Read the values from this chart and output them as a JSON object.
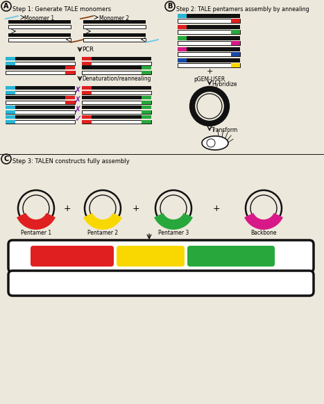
{
  "bg": "#ede8dc",
  "black": "#111111",
  "white": "#ffffff",
  "cyan": "#28b5d5",
  "red": "#e02020",
  "green": "#28a83c",
  "magenta": "#d81888",
  "blue": "#1848a8",
  "yellow": "#f8d800",
  "purple": "#7820a0",
  "brown": "#8B4513",
  "lblue": "#68c8e8",
  "panel_A": "A",
  "panel_B": "B",
  "panel_C": "C",
  "title_A": "Step 1: Generate TALE monomers",
  "title_B": "Step 2: TALE pentamers assembly by annealing",
  "title_C": "Step 3: TALEN constructs fully assembly",
  "mon1": "Monomer 1",
  "mon2": "Monomer 2",
  "pcr": "PCR",
  "denat": "Denaturation/reannealing",
  "pgem": "pGEM-USER",
  "hybrid": "Hybridize",
  "transform": "Transform",
  "pent_labels": [
    "Pentamer 1",
    "Pentamer 2",
    "Pentamer 3",
    "Backbone"
  ],
  "pent_colors": [
    "#e02020",
    "#f8d800",
    "#28a83c",
    "#d81888"
  ]
}
